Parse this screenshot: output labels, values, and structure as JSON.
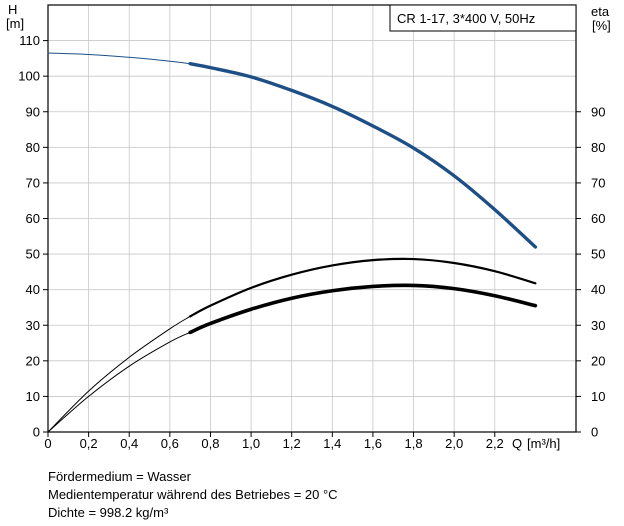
{
  "chart_data": {
    "type": "line",
    "title_box": "CR 1-17, 3*400 V, 50Hz",
    "left_axis": {
      "label_top": "H",
      "label_unit": "[m]",
      "ylim": [
        0,
        120
      ],
      "tick_values": [
        0,
        10,
        20,
        30,
        40,
        50,
        60,
        70,
        80,
        90,
        100,
        110
      ],
      "tick_labels": [
        "0",
        "10",
        "20",
        "30",
        "40",
        "50",
        "60",
        "70",
        "80",
        "90",
        "100",
        "110"
      ]
    },
    "right_axis": {
      "label_top": "eta",
      "label_unit": "[%]",
      "ylim": [
        0,
        120
      ],
      "tick_values": [
        0,
        10,
        20,
        30,
        40,
        50,
        60,
        70,
        80,
        90
      ],
      "tick_labels": [
        "0",
        "10",
        "20",
        "30",
        "40",
        "50",
        "60",
        "70",
        "80",
        "90"
      ]
    },
    "x_axis": {
      "label": "Q",
      "unit": "[m³/h]",
      "xlim": [
        0,
        2.6
      ],
      "tick_values": [
        0,
        0.2,
        0.4,
        0.6,
        0.8,
        1.0,
        1.2,
        1.4,
        1.6,
        1.8,
        2.0,
        2.2
      ],
      "tick_labels": [
        "0",
        "0,2",
        "0,4",
        "0,6",
        "0,8",
        "1,0",
        "1,2",
        "1,4",
        "1,6",
        "1,8",
        "2,0",
        "2,2"
      ]
    },
    "grid": true,
    "series": [
      {
        "id": "head",
        "axis": "left",
        "color": "#1d4f86",
        "thin_range": [
          0,
          0.7
        ],
        "bold_range": [
          0.7,
          2.4
        ],
        "x": [
          0,
          0.2,
          0.4,
          0.6,
          0.7,
          0.8,
          1.0,
          1.2,
          1.4,
          1.6,
          1.8,
          2.0,
          2.2,
          2.4
        ],
        "y": [
          106.5,
          106.1,
          105.3,
          104.2,
          103.5,
          102.4,
          99.8,
          96.0,
          91.5,
          86.0,
          79.8,
          72.0,
          62.5,
          52.0
        ]
      },
      {
        "id": "eta_upper",
        "axis": "right",
        "color": "#000000",
        "thin_range": [
          0,
          0.7
        ],
        "bold_range": [
          0.7,
          2.4
        ],
        "x": [
          0,
          0.2,
          0.4,
          0.6,
          0.7,
          0.8,
          1.0,
          1.2,
          1.4,
          1.6,
          1.8,
          2.0,
          2.2,
          2.4
        ],
        "y": [
          0,
          11.5,
          21,
          29,
          32.5,
          35.5,
          40.5,
          44.2,
          46.8,
          48.3,
          48.6,
          47.5,
          45.2,
          41.8
        ]
      },
      {
        "id": "eta_lower",
        "axis": "right",
        "color": "#000000",
        "thin_range": [
          0,
          0.7
        ],
        "bold_range": [
          0.7,
          2.4
        ],
        "x": [
          0,
          0.2,
          0.4,
          0.6,
          0.7,
          0.8,
          1.0,
          1.2,
          1.4,
          1.6,
          1.8,
          2.0,
          2.2,
          2.4
        ],
        "y": [
          0,
          10,
          18.5,
          25.3,
          28,
          30.5,
          34.5,
          37.6,
          39.7,
          40.9,
          41.2,
          40.3,
          38.3,
          35.5
        ]
      }
    ]
  },
  "notes": {
    "medium": "Fördermedium = Wasser",
    "temperature": "Medientemperatur während des Betriebes = 20 °C",
    "density": "Dichte = 998.2 kg/m³"
  },
  "colors": {
    "head_curve": "#1d4f86",
    "eta_curves": "#000000",
    "grid": "#c8c8c8"
  }
}
